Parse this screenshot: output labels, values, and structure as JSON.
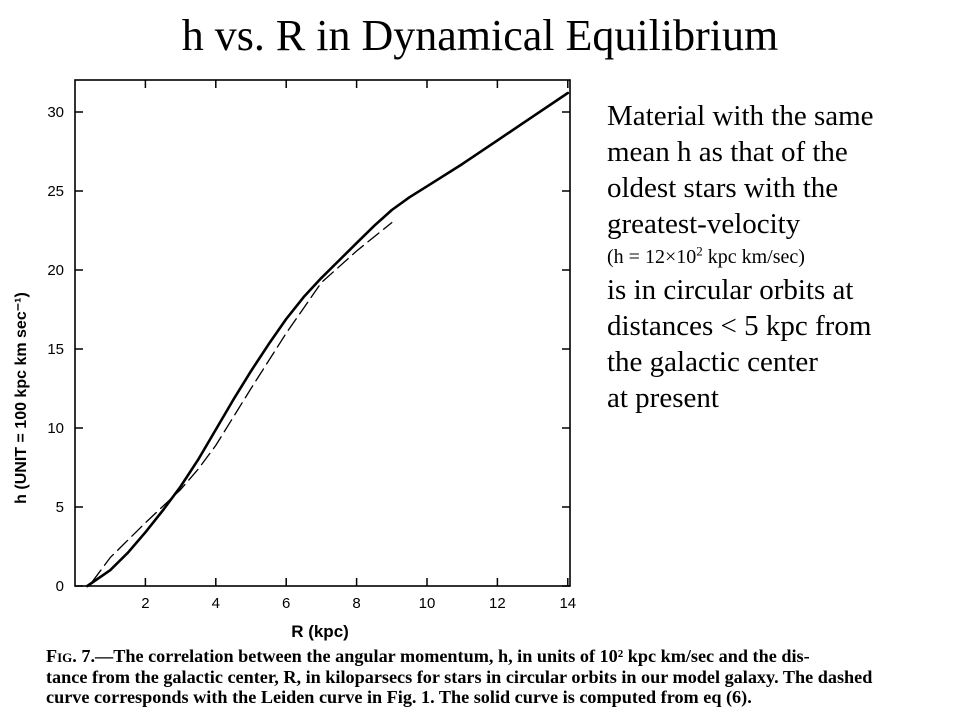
{
  "slide": {
    "title": "h vs. R in Dynamical Equilibrium"
  },
  "note": {
    "lines": [
      "Material with the same",
      "mean h as that of the",
      "oldest stars with the",
      "greatest-velocity"
    ],
    "formula_prefix": "(h = 12",
    "formula_times": "×",
    "formula_base": "10",
    "formula_exp": "2",
    "formula_suffix": " kpc km/sec)",
    "lines2": [
      "is in circular orbits at",
      "distances < 5 kpc from",
      "the galactic center",
      "at present"
    ]
  },
  "caption": {
    "fig_label": "Fig. 7.",
    "lines": [
      "—The correlation between the angular momentum, h, in units of 10² kpc km/sec and the dis-",
      "tance from the galactic center, R, in kiloparsecs for stars in circular orbits in our model galaxy. The dashed",
      "curve corresponds with the Leiden curve in Fig. 1. The solid curve is computed from eq  (6)."
    ]
  },
  "chart_data": {
    "type": "line",
    "xlabel": "R (kpc)",
    "ylabel": "h (UNIT = 100 kpc km sec⁻¹)",
    "xlim": [
      0,
      14
    ],
    "ylim": [
      0,
      32
    ],
    "x_ticks": [
      2,
      4,
      6,
      8,
      10,
      12,
      14
    ],
    "y_ticks": [
      0,
      5,
      10,
      15,
      20,
      25,
      30
    ],
    "grid": false,
    "series": [
      {
        "style": "solid",
        "x": [
          0.35,
          1.0,
          1.5,
          2.0,
          2.5,
          3.0,
          3.5,
          4.0,
          4.5,
          5.0,
          5.5,
          6.0,
          6.5,
          7.0,
          7.5,
          8.0,
          8.5,
          9.0,
          9.5,
          10.0,
          11.0,
          12.0,
          13.0,
          14.0
        ],
        "y": [
          0.0,
          1.0,
          2.1,
          3.4,
          4.8,
          6.3,
          8.0,
          9.9,
          11.8,
          13.6,
          15.3,
          16.9,
          18.3,
          19.5,
          20.6,
          21.7,
          22.8,
          23.8,
          24.6,
          25.3,
          26.7,
          28.2,
          29.7,
          31.2
        ]
      },
      {
        "style": "dashed",
        "x": [
          0.5,
          1.0,
          2.0,
          3.0,
          3.5,
          4.0,
          5.0,
          6.0,
          7.0,
          8.0,
          9.0
        ],
        "y": [
          0.3,
          1.8,
          4.0,
          6.1,
          7.4,
          8.9,
          12.5,
          16.0,
          19.2,
          21.2,
          23.0
        ]
      }
    ]
  }
}
